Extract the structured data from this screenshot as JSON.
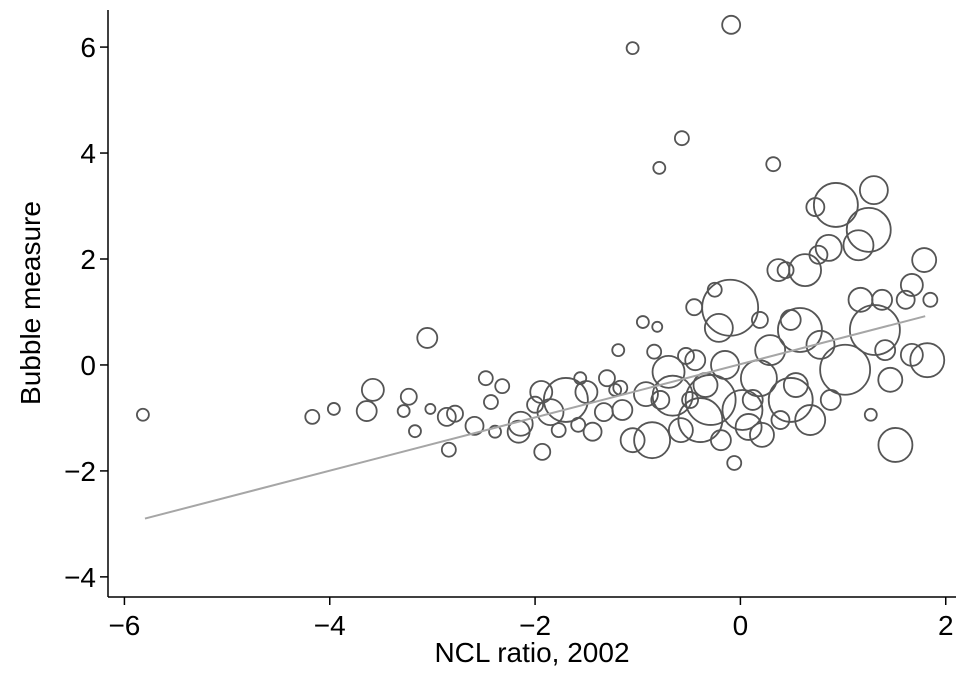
{
  "chart_data": {
    "type": "bubble",
    "x_label": "NCL ratio, 2002",
    "y_label": "Bubble measure",
    "xlim": [
      -6.16,
      2.1
    ],
    "ylim": [
      -4.38,
      6.7
    ],
    "xticks": [
      {
        "value": -6,
        "label": "−6"
      },
      {
        "value": -4,
        "label": "−4"
      },
      {
        "value": -2,
        "label": "−2"
      },
      0,
      2
    ],
    "yticks": [
      {
        "value": -4,
        "label": "−4"
      },
      {
        "value": -2,
        "label": "−2"
      },
      0,
      2,
      4,
      6
    ],
    "color": "#555555",
    "series": [
      {
        "x": [
          -5.82,
          -4.17,
          -3.96,
          -3.64,
          -3.58,
          -3.23,
          -3.28,
          -3.17,
          -3.05,
          -3.02,
          -2.86,
          -2.78,
          -2.84,
          -2.59,
          -2.48,
          -2.43,
          -2.32,
          -2.39,
          -2.16,
          -2.14,
          -2.0,
          -1.94,
          -1.93,
          -1.85,
          -1.77,
          -1.7,
          -1.58,
          -1.5,
          -1.56,
          -1.44,
          -1.33,
          -1.3,
          -1.19,
          -1.17,
          -1.15,
          -1.05,
          -1.05,
          -0.92,
          -0.86,
          -0.95,
          -0.81,
          -0.79,
          -0.84,
          -0.7,
          -0.66,
          -0.57,
          -0.53,
          -0.45,
          -0.39,
          -0.29,
          -0.25,
          -0.21,
          -0.1,
          -0.09,
          -0.06,
          0.02,
          0.08,
          0.18,
          0.29,
          0.32,
          0.37,
          0.49,
          0.58,
          0.63,
          0.68,
          0.73,
          0.78,
          0.86,
          0.93,
          1.02,
          1.15,
          1.17,
          1.25,
          1.3,
          1.27,
          1.31,
          1.41,
          1.38,
          1.46,
          1.51,
          1.61,
          1.67,
          1.67,
          1.79,
          1.82,
          1.85,
          -0.58,
          -0.44,
          -0.34,
          -0.19,
          -0.15,
          0.12,
          0.21,
          0.39,
          0.54,
          0.88,
          0.49,
          0.19,
          -0.49,
          -0.78,
          -1.22,
          0.44,
          0.76
        ],
        "y": [
          -0.94,
          -0.98,
          -0.83,
          -0.87,
          -0.47,
          -0.6,
          -0.87,
          -1.25,
          0.51,
          -0.83,
          -0.98,
          -0.92,
          -1.6,
          -1.15,
          -0.25,
          -0.7,
          -0.4,
          -1.26,
          -1.26,
          -1.11,
          -0.75,
          -0.51,
          -1.64,
          -0.89,
          -1.23,
          -0.66,
          -1.13,
          -0.51,
          -0.25,
          -1.26,
          -0.89,
          -0.25,
          0.28,
          -0.43,
          -0.85,
          5.98,
          -1.42,
          -0.55,
          -1.42,
          0.81,
          0.72,
          3.72,
          0.25,
          -0.13,
          -0.58,
          4.28,
          0.17,
          1.09,
          -1.04,
          -0.66,
          1.42,
          0.7,
          1.08,
          6.42,
          -1.85,
          -0.85,
          -1.17,
          -0.25,
          0.28,
          3.79,
          1.79,
          -0.66,
          0.66,
          1.79,
          -1.04,
          2.98,
          0.38,
          2.21,
          3.02,
          -0.09,
          2.26,
          1.23,
          2.55,
          3.3,
          -0.94,
          0.66,
          0.28,
          1.23,
          -0.28,
          -1.51,
          1.23,
          1.51,
          0.19,
          1.98,
          0.09,
          1.23,
          -1.23,
          0.09,
          -0.38,
          -1.42,
          0.0,
          -0.66,
          -1.32,
          -1.04,
          -0.38,
          -0.66,
          0.85,
          0.85,
          -0.66,
          -0.66,
          -0.47,
          1.79,
          2.08
        ],
        "sizes": [
          6,
          7,
          6,
          10,
          11,
          8,
          6,
          6,
          10,
          5,
          9,
          8,
          7,
          9,
          7,
          7,
          7,
          6,
          11,
          12,
          8,
          11,
          8,
          13,
          7,
          22,
          7,
          11,
          6,
          9,
          9,
          8,
          6,
          7,
          10,
          6,
          12,
          12,
          18,
          6,
          5,
          6,
          7,
          16,
          20,
          7,
          8,
          8,
          22,
          25,
          7,
          14,
          28,
          9,
          7,
          20,
          13,
          18,
          15,
          7,
          11,
          22,
          22,
          16,
          15,
          9,
          14,
          13,
          22,
          25,
          15,
          12,
          22,
          14,
          6,
          25,
          10,
          10,
          12,
          17,
          9,
          11,
          11,
          12,
          17,
          7,
          12,
          10,
          12,
          10,
          14,
          10,
          12,
          9,
          12,
          10,
          10,
          8,
          8,
          9,
          6,
          8,
          9
        ]
      }
    ],
    "fit": {
      "x": [
        -5.8,
        1.8
      ],
      "y": [
        -2.9,
        0.92
      ],
      "color": "#a6a6a6"
    }
  }
}
